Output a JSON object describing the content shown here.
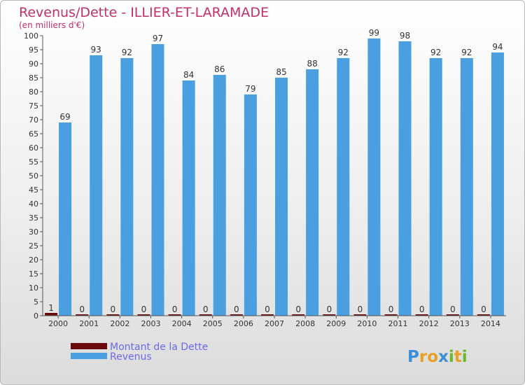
{
  "chart_data": {
    "type": "bar",
    "title": "Revenus/Dette - ILLIER-ET-LARAMADE",
    "subtitle": "(en milliers d'€)",
    "categories": [
      "2000",
      "2001",
      "2002",
      "2003",
      "2004",
      "2005",
      "2006",
      "2007",
      "2008",
      "2009",
      "2010",
      "2011",
      "2012",
      "2013",
      "2014"
    ],
    "series": [
      {
        "name": "Montant de la Dette",
        "color": "#6b0a0a",
        "values": [
          1,
          0,
          0,
          0,
          0,
          0,
          0,
          0,
          0,
          0,
          0,
          0,
          0,
          0,
          0
        ]
      },
      {
        "name": "Revenus",
        "color": "#4a9fe0",
        "values": [
          69,
          93,
          92,
          97,
          84,
          86,
          79,
          85,
          88,
          92,
          99,
          98,
          92,
          92,
          94
        ]
      }
    ],
    "ylim": [
      0,
      100
    ],
    "ytick_step": 5,
    "grid": false,
    "legend": "bottom-left"
  },
  "brand": {
    "logo_text": "Proxiti",
    "letters": [
      {
        "ch": "P",
        "color": "#3a8fd6"
      },
      {
        "ch": "r",
        "color": "#e8a020"
      },
      {
        "ch": "o",
        "color": "#e8a020"
      },
      {
        "ch": "x",
        "color": "#3a8fd6"
      },
      {
        "ch": "i",
        "color": "#66b82e"
      },
      {
        "ch": "t",
        "color": "#e8a020"
      },
      {
        "ch": "i",
        "color": "#66b82e"
      }
    ]
  }
}
